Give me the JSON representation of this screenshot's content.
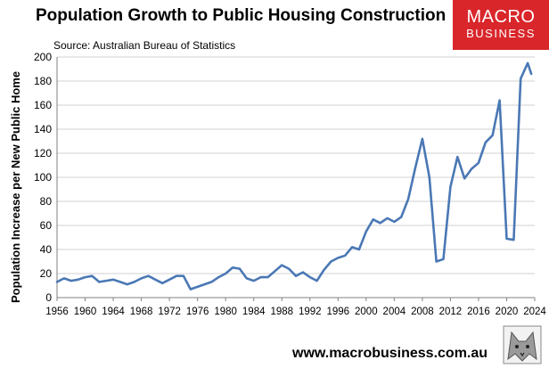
{
  "title": "Population Growth to Public Housing Construction",
  "source": "Source: Australian Bureau of Statistics",
  "logo": {
    "line1": "MACRO",
    "line2": "BUSINESS"
  },
  "footer": "www.macrobusiness.com.au",
  "colors": {
    "line": "#4a78b5",
    "brand": "#d9262b",
    "grid": "#d0d0d0"
  },
  "chart_data": {
    "type": "line",
    "title": "Population Growth to Public Housing Construction",
    "xlabel": "",
    "ylabel": "Population Increase per New Public Home",
    "xlim": [
      1956,
      2024
    ],
    "ylim": [
      0,
      200
    ],
    "yticks": [
      0,
      20,
      40,
      60,
      80,
      100,
      120,
      140,
      160,
      180,
      200
    ],
    "xticks": [
      1956,
      1960,
      1964,
      1968,
      1972,
      1976,
      1980,
      1984,
      1988,
      1992,
      1996,
      2000,
      2004,
      2008,
      2012,
      2016,
      2020,
      2024
    ],
    "grid": "horizontal",
    "series": [
      {
        "name": "Population Increase per New Public Home",
        "x": [
          1956,
          1957,
          1958,
          1959,
          1960,
          1961,
          1962,
          1963,
          1964,
          1965,
          1966,
          1967,
          1968,
          1969,
          1970,
          1971,
          1972,
          1973,
          1974,
          1975,
          1976,
          1977,
          1978,
          1979,
          1980,
          1981,
          1982,
          1983,
          1984,
          1985,
          1986,
          1987,
          1988,
          1989,
          1990,
          1991,
          1992,
          1993,
          1994,
          1995,
          1996,
          1997,
          1998,
          1999,
          2000,
          2001,
          2002,
          2003,
          2004,
          2005,
          2006,
          2007,
          2008,
          2009,
          2010,
          2011,
          2012,
          2013,
          2014,
          2015,
          2016,
          2017,
          2018,
          2019,
          2020,
          2021,
          2022,
          2023,
          2023.5
        ],
        "values": [
          13,
          16,
          14,
          15,
          17,
          18,
          13,
          14,
          15,
          13,
          11,
          13,
          16,
          18,
          15,
          12,
          15,
          18,
          18,
          7,
          9,
          11,
          13,
          17,
          20,
          25,
          24,
          16,
          14,
          17,
          17,
          22,
          27,
          24,
          18,
          21,
          17,
          14,
          23,
          30,
          33,
          35,
          42,
          40,
          55,
          65,
          62,
          66,
          63,
          67,
          82,
          108,
          132,
          100,
          30,
          32,
          92,
          117,
          99,
          107,
          112,
          129,
          135,
          164,
          49,
          48,
          182,
          195,
          186
        ]
      }
    ]
  }
}
